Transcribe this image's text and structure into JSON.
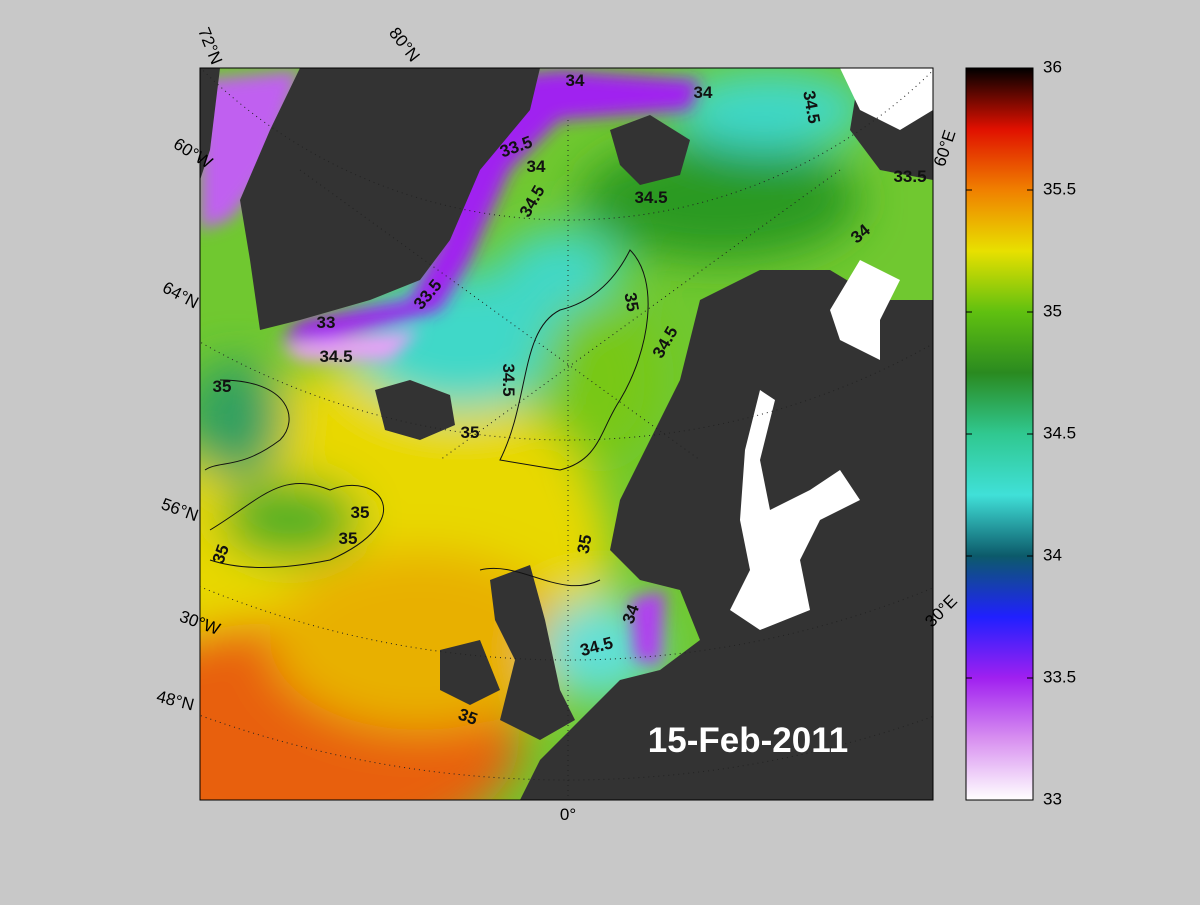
{
  "map": {
    "date": "15-Feb-2011",
    "graticule_labels": [
      "72°N",
      "80°N",
      "60°W",
      "64°N",
      "56°N",
      "30°W",
      "48°N",
      "0°",
      "60°E",
      "30°E"
    ],
    "contour_labels": [
      34,
      34,
      34.5,
      33.5,
      34,
      34.5,
      34.5,
      33.5,
      34,
      33.5,
      35,
      33,
      34.5,
      34.5,
      35,
      34.5,
      35,
      35,
      35,
      35,
      35,
      34,
      34.5,
      35
    ]
  },
  "colorbar": {
    "lim": [
      33,
      36
    ],
    "ticks": [
      33,
      33.5,
      34,
      34.5,
      35,
      35.5,
      36
    ],
    "colors": [
      "#ffffff",
      "#d890f0",
      "#a020f0",
      "#2020ff",
      "#0c5a6a",
      "#40e0d8",
      "#30c890",
      "#2a8a20",
      "#60c010",
      "#e8e000",
      "#f08000",
      "#e01000",
      "#000000"
    ]
  }
}
